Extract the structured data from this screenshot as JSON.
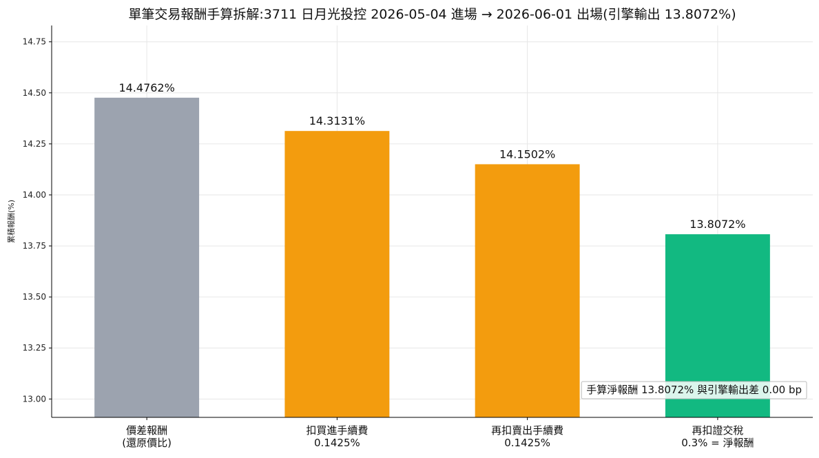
{
  "chart_data": {
    "type": "bar",
    "title": "單筆交易報酬手算拆解:3711 日月光投控 2026-05-04 進場 → 2026-06-01 出場(引擎輸出 13.8072%)",
    "ylabel": "累積報酬(%)",
    "xlabel": "",
    "ylim": [
      12.91,
      14.83
    ],
    "yticks": [
      "13.00",
      "13.25",
      "13.50",
      "13.75",
      "14.00",
      "14.25",
      "14.50",
      "14.75"
    ],
    "grid": true,
    "categories": [
      [
        "價差報酬",
        "(還原價比)"
      ],
      [
        "扣買進手續費",
        "0.1425%"
      ],
      [
        "再扣賣出手續費",
        "0.1425%"
      ],
      [
        "再扣證交稅",
        "0.3% = 淨報酬"
      ]
    ],
    "values": [
      14.4762,
      14.3131,
      14.1502,
      13.8072
    ],
    "value_labels": [
      "14.4762%",
      "14.3131%",
      "14.1502%",
      "13.8072%"
    ],
    "colors": [
      "#9ca3af",
      "#f39c0e",
      "#f39c0e",
      "#12b981"
    ],
    "annotation": "手算淨報酬 13.8072% 與引擎輸出差 0.00 bp"
  }
}
